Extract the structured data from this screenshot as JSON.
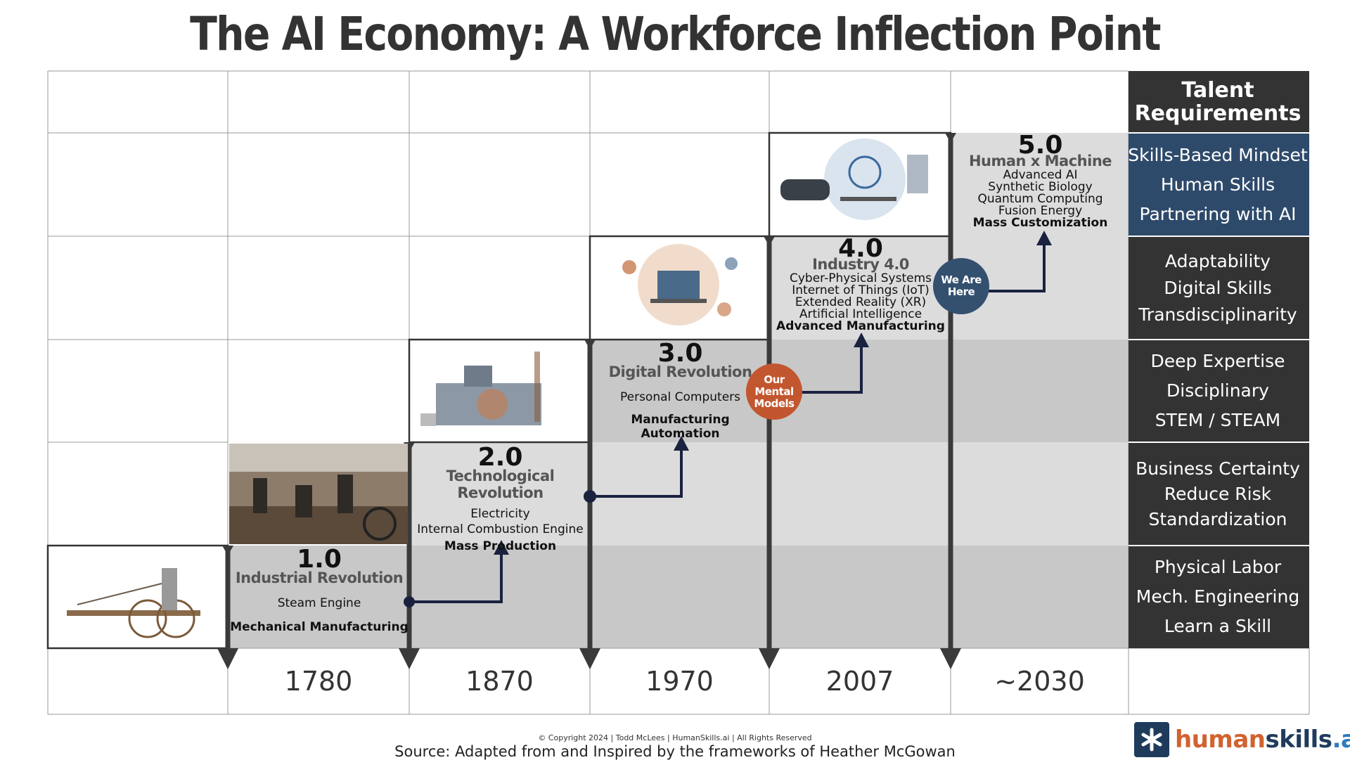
{
  "title": "The AI Economy: A Workforce Inflection Point",
  "talent_header": [
    "Talent",
    "Requirements"
  ],
  "revolutions": [
    {
      "number": "1.0",
      "name": "Industrial Revolution",
      "items": [
        "Steam Engine"
      ],
      "bold_item": "Mechanical Manufacturing"
    },
    {
      "number": "2.0",
      "name": "Technological Revolution",
      "items": [
        "Electricity",
        "Internal Combustion Engine"
      ],
      "bold_item": "Mass Production"
    },
    {
      "number": "3.0",
      "name": "Digital Revolution",
      "items": [
        "Personal Computers"
      ],
      "bold_item": "Manufacturing Automation"
    },
    {
      "number": "4.0",
      "name": "Industry 4.0",
      "items": [
        "Cyber-Physical Systems",
        "Internet of Things (IoT)",
        "Extended Reality (XR)",
        "Artificial Intelligence"
      ],
      "bold_item": "Advanced Manufacturing"
    },
    {
      "number": "5.0",
      "name": "Human x Machine",
      "items": [
        "Advanced AI",
        "Synthetic Biology",
        "Quantum Computing",
        "Fusion Energy"
      ],
      "bold_item": "Mass Customization"
    }
  ],
  "years": [
    "1780",
    "1870",
    "1970",
    "2007",
    "~2030"
  ],
  "talent_requirements": [
    [
      "Skills-Based Mindset",
      "Human Skills",
      "Partnering with AI"
    ],
    [
      "Adaptability",
      "Digital Skills",
      "Transdisciplinarity"
    ],
    [
      "Deep Expertise",
      "Disciplinary",
      "STEM / STEAM"
    ],
    [
      "Business Certainty",
      "Reduce Risk",
      "Standardization"
    ],
    [
      "Physical Labor",
      "Mech. Engineering",
      "Learn a Skill"
    ]
  ],
  "badges": {
    "mental_models": [
      "Our",
      "Mental",
      "Models"
    ],
    "we_are_here": [
      "We Are",
      "Here"
    ]
  },
  "colors": {
    "dark": "#333333",
    "navy": "#2e4a6b",
    "orange": "#c2562f",
    "badge_blue": "#34506f",
    "gray_light": "#dcdcdc",
    "gray_mid": "#cccccc",
    "gray_dark": "#bdbdbd"
  },
  "copyright": "© Copyright 2024 | Todd McLees | HumanSkills.ai | All Rights Reserved",
  "source": "Source: Adapted from and Inspired by the frameworks of Heather McGowan",
  "logo": {
    "part1": "human",
    "part2": "skills",
    "part3": ".ai"
  }
}
